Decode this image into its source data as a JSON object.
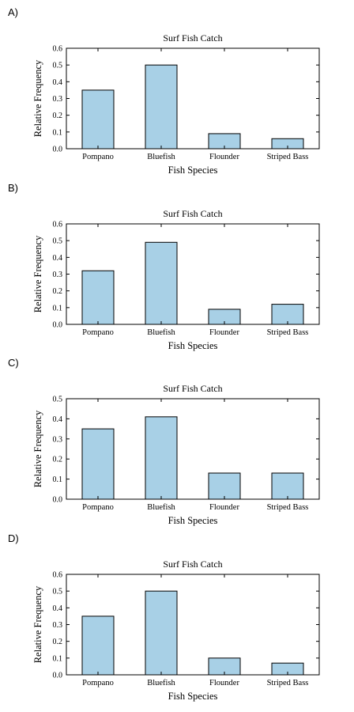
{
  "chart_data": [
    {
      "panel": "A)",
      "type": "bar",
      "title": "Surf Fish Catch",
      "xlabel": "Fish Species",
      "ylabel": "Relative Frequency",
      "categories": [
        "Pompano",
        "Bluefish",
        "Flounder",
        "Striped Bass"
      ],
      "values": [
        0.35,
        0.5,
        0.09,
        0.06
      ],
      "ylim": [
        0,
        0.6
      ],
      "yticks": [
        "0.0",
        "0.1",
        "0.2",
        "0.3",
        "0.4",
        "0.5",
        "0.6"
      ],
      "grid": false,
      "bar_color": "#a8d0e6"
    },
    {
      "panel": "B)",
      "type": "bar",
      "title": "Surf Fish Catch",
      "xlabel": "Fish Species",
      "ylabel": "Relative Frequency",
      "categories": [
        "Pompano",
        "Bluefish",
        "Flounder",
        "Striped Bass"
      ],
      "values": [
        0.32,
        0.49,
        0.09,
        0.12
      ],
      "ylim": [
        0,
        0.6
      ],
      "yticks": [
        "0.0",
        "0.1",
        "0.2",
        "0.3",
        "0.4",
        "0.5",
        "0.6"
      ],
      "grid": false,
      "bar_color": "#a8d0e6"
    },
    {
      "panel": "C)",
      "type": "bar",
      "title": "Surf Fish Catch",
      "xlabel": "Fish Species",
      "ylabel": "Relative Frequency",
      "categories": [
        "Pompano",
        "Bluefish",
        "Flounder",
        "Striped Bass"
      ],
      "values": [
        0.35,
        0.41,
        0.13,
        0.13
      ],
      "ylim": [
        0,
        0.5
      ],
      "yticks": [
        "0.0",
        "0.1",
        "0.2",
        "0.3",
        "0.4",
        "0.5"
      ],
      "grid": false,
      "bar_color": "#a8d0e6"
    },
    {
      "panel": "D)",
      "type": "bar",
      "title": "Surf Fish Catch",
      "xlabel": "Fish Species",
      "ylabel": "Relative Frequency",
      "categories": [
        "Pompano",
        "Bluefish",
        "Flounder",
        "Striped Bass"
      ],
      "values": [
        0.35,
        0.5,
        0.1,
        0.07
      ],
      "ylim": [
        0,
        0.6
      ],
      "yticks": [
        "0.0",
        "0.1",
        "0.2",
        "0.3",
        "0.4",
        "0.5",
        "0.6"
      ],
      "grid": false,
      "bar_color": "#a8d0e6"
    }
  ]
}
